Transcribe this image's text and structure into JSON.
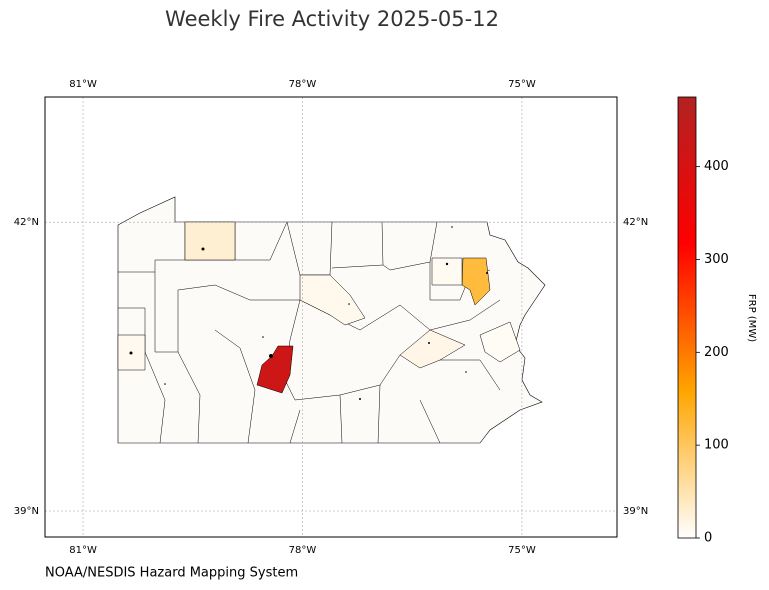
{
  "chart_data": {
    "type": "map",
    "title": "Weekly Fire Activity 2025-05-12",
    "source": "NOAA/NESDIS Hazard Mapping System",
    "xlim": [
      -81.52,
      -73.7
    ],
    "ylim": [
      38.73,
      43.3
    ],
    "xticks": [
      {
        "value": -81,
        "label": "81°W"
      },
      {
        "value": -78,
        "label": "78°W"
      },
      {
        "value": -75,
        "label": "75°W"
      }
    ],
    "yticks": [
      {
        "value": 42,
        "label": "42°N"
      },
      {
        "value": 39,
        "label": "39°N"
      }
    ],
    "grid": true,
    "colorbar": {
      "label": "FRP (MW)",
      "lim": [
        0,
        475
      ],
      "ticks": [
        0,
        100,
        200,
        300,
        400
      ],
      "colors": [
        "#ffffff",
        "#ffa500",
        "#ff0000",
        "#b22222"
      ]
    },
    "regions": [
      {
        "frp": 420
      },
      {
        "frp": 120
      },
      {
        "frp": 28
      },
      {
        "frp": 15
      },
      {
        "frp": 12
      },
      {
        "frp": 10
      },
      {
        "frp": 8
      },
      {
        "frp": 6
      }
    ]
  }
}
